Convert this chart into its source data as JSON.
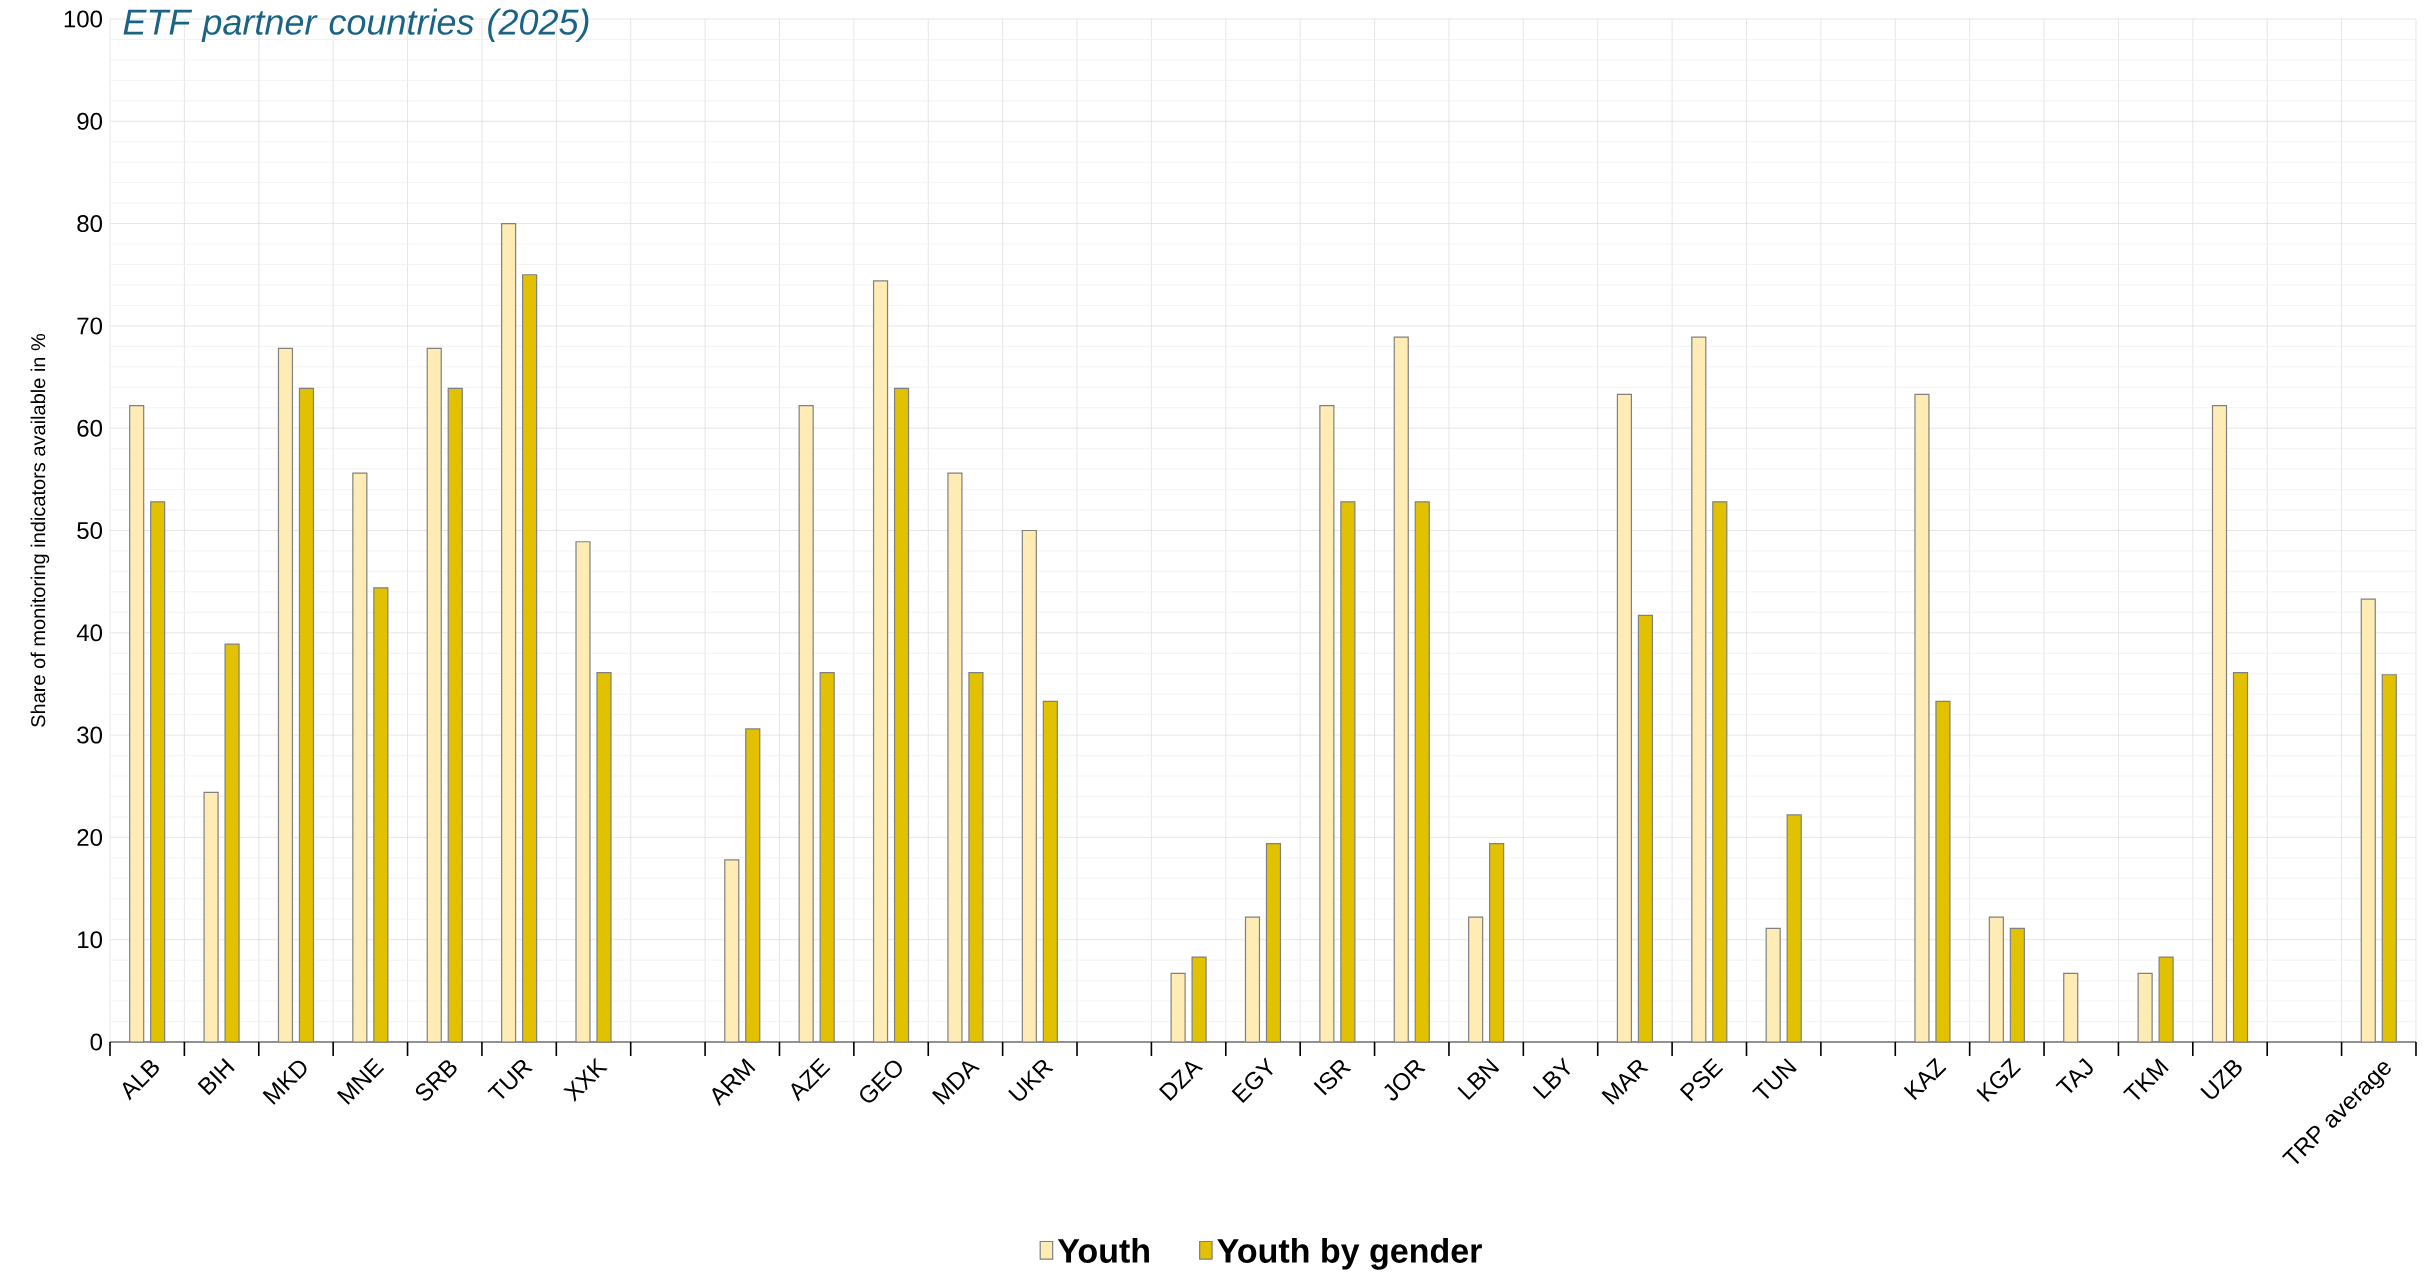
{
  "chart_data": {
    "type": "bar",
    "title": "ETF partner countries (2025)",
    "ylabel": "Share of monitoring indicators available in %",
    "categories": [
      "ALB",
      "BIH",
      "MKD",
      "MNE",
      "SRB",
      "TUR",
      "XXK",
      null,
      "ARM",
      "AZE",
      "GEO",
      "MDA",
      "UKR",
      null,
      "DZA",
      "EGY",
      "ISR",
      "JOR",
      "LBN",
      "LBY",
      "MAR",
      "PSE",
      "TUN",
      null,
      "KAZ",
      "KGZ",
      "TAJ",
      "TKM",
      "UZB",
      null,
      "TRP average"
    ],
    "series": [
      {
        "name": "Youth",
        "color": "#feecb4",
        "values": [
          62.2,
          24.4,
          67.8,
          55.6,
          67.8,
          80,
          48.9,
          null,
          17.8,
          62.2,
          74.4,
          55.6,
          50,
          null,
          6.7,
          12.2,
          62.2,
          68.9,
          12.2,
          null,
          63.3,
          68.9,
          11.1,
          null,
          63.3,
          12.2,
          6.7,
          6.7,
          62.2,
          null,
          43.3
        ]
      },
      {
        "name": "Youth by gender",
        "color": "#e2c200",
        "values": [
          52.8,
          38.9,
          63.9,
          44.4,
          63.9,
          75,
          36.1,
          null,
          30.6,
          36.1,
          63.9,
          36.1,
          33.3,
          null,
          8.3,
          19.4,
          52.8,
          52.8,
          19.4,
          null,
          41.7,
          52.8,
          22.2,
          null,
          33.3,
          11.1,
          null,
          8.3,
          36.1,
          null,
          35.9
        ]
      }
    ],
    "ylim": [
      0,
      100
    ],
    "yticks": [
      0,
      10,
      20,
      30,
      40,
      50,
      60,
      70,
      80,
      90,
      100
    ],
    "grid": true,
    "legend": "bottom"
  }
}
